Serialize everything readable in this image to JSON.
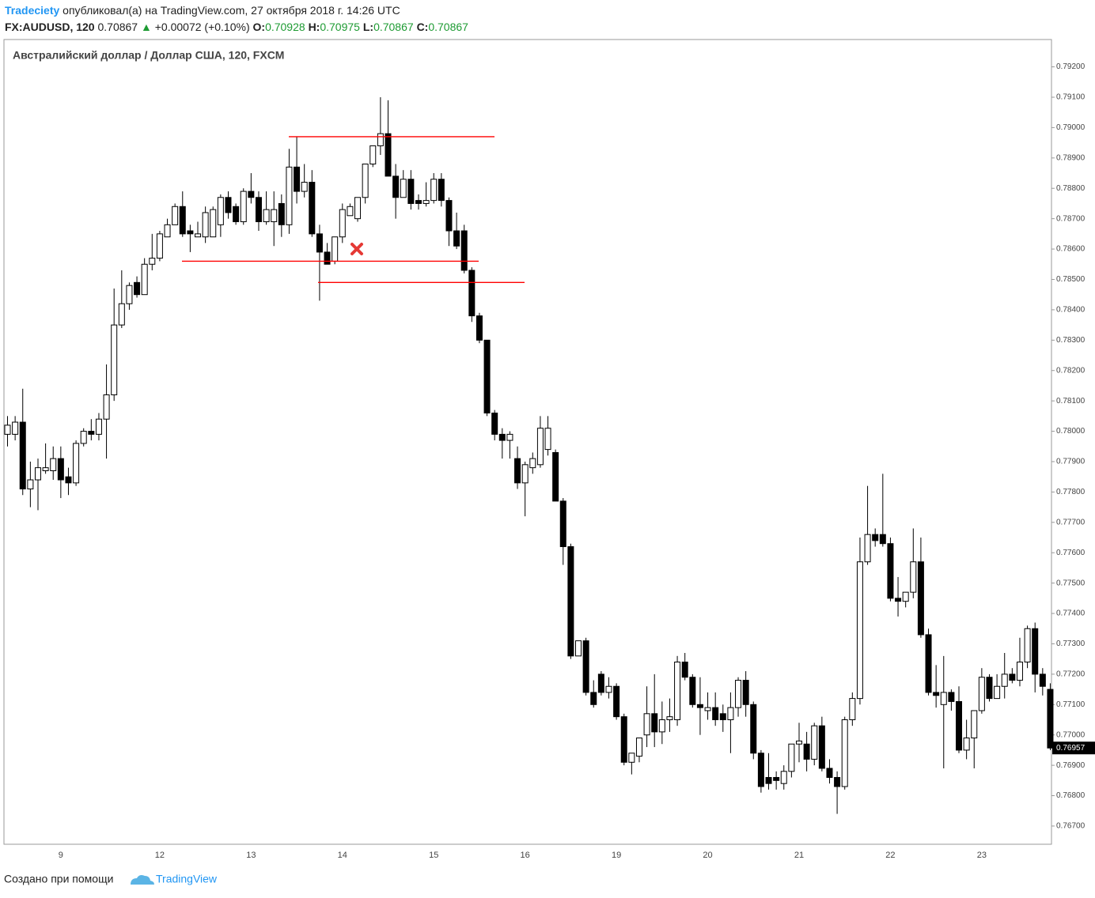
{
  "header": {
    "author": "Tradeciety",
    "published": "опубликовал(а) на TradingView.com, 27 октября 2018 г. 14:26 UTC",
    "symbol": "FX:AUDUSD, 120",
    "price": "0.70867",
    "arrow": "▲",
    "change": "+0.00072 (+0.10%)",
    "o_label": "O:",
    "o_value": "0.70928",
    "h_label": "H:",
    "h_value": "0.70975",
    "l_label": "L:",
    "l_value": "0.70867",
    "c_label": "C:",
    "c_value": "0.70867"
  },
  "footer": {
    "text": "Создано при помощи",
    "brand": "TradingView"
  },
  "chart_data": {
    "type": "candlestick",
    "title": "Австралийский доллар / Доллар США, 120, FXCM",
    "up_color": "#ffffff",
    "down_color": "#000000",
    "level_color": "#ff0000",
    "categories": [
      null,
      null,
      null,
      null,
      null,
      null,
      null,
      "9",
      null,
      null,
      null,
      null,
      null,
      null,
      null,
      null,
      null,
      null,
      null,
      null,
      "12",
      null,
      null,
      null,
      null,
      null,
      null,
      null,
      null,
      null,
      null,
      null,
      "13",
      null,
      null,
      null,
      null,
      null,
      null,
      null,
      null,
      null,
      null,
      null,
      "14",
      null,
      null,
      null,
      null,
      null,
      null,
      null,
      null,
      null,
      null,
      null,
      "15",
      null,
      null,
      null,
      null,
      null,
      null,
      null,
      null,
      null,
      null,
      null,
      "16",
      null,
      null,
      null,
      null,
      null,
      null,
      null,
      null,
      null,
      null,
      null,
      "19",
      null,
      null,
      null,
      null,
      null,
      null,
      null,
      null,
      null,
      null,
      null,
      "20",
      null,
      null,
      null,
      null,
      null,
      null,
      null,
      null,
      null,
      null,
      null,
      "21",
      null,
      null,
      null,
      null,
      null,
      null,
      null,
      null,
      null,
      null,
      null,
      "22",
      null,
      null,
      null,
      null,
      null,
      null,
      null,
      null,
      null,
      null,
      null,
      "23",
      null,
      null,
      null,
      null,
      null,
      null,
      null,
      null,
      null
    ],
    "open": [
      0.7799,
      0.7799,
      0.7803,
      0.7781,
      0.7784,
      0.7787,
      0.7787,
      0.7791,
      0.7785,
      0.7783,
      0.7796,
      0.78,
      0.7799,
      0.7804,
      0.7812,
      0.7835,
      0.7842,
      0.7849,
      0.7845,
      0.7855,
      0.7857,
      0.7864,
      0.7868,
      0.7874,
      0.7866,
      0.7864,
      0.7864,
      0.7864,
      0.7868,
      0.7877,
      0.7874,
      0.7869,
      0.7879,
      0.7877,
      0.7869,
      0.7869,
      0.7875,
      0.7868,
      0.7887,
      0.7879,
      0.7882,
      0.7865,
      0.7859,
      0.7856,
      0.7864,
      0.7871,
      0.787,
      0.7877,
      0.7888,
      0.7894,
      0.7898,
      0.7884,
      0.7877,
      0.7883,
      0.7876,
      0.7875,
      0.7876,
      0.7883,
      0.7876,
      0.7866,
      0.7866,
      0.7853,
      0.7838,
      0.783,
      0.7806,
      0.7799,
      0.7797,
      0.7791,
      0.7783,
      0.7788,
      0.7789,
      0.7794,
      0.7793,
      0.7777,
      0.7762,
      0.7726,
      0.7731,
      0.7714,
      0.772,
      0.7714,
      0.7716,
      0.7706,
      0.7691,
      0.7693,
      0.77,
      0.7707,
      0.7701,
      0.7705,
      0.7705,
      0.7724,
      0.7719,
      0.771,
      0.7708,
      0.7709,
      0.7707,
      0.7705,
      0.7709,
      0.7718,
      0.771,
      0.7694,
      0.7686,
      0.7686,
      0.7684,
      0.7688,
      0.7697,
      0.7697,
      0.7692,
      0.7703,
      0.7689,
      0.7686,
      0.7683,
      0.7705,
      0.7712,
      0.7757,
      0.7766,
      0.7766,
      0.7763,
      0.7745,
      0.7744,
      0.7747,
      0.7757,
      0.7733,
      0.7714,
      0.771,
      0.7714,
      0.7711,
      0.7695,
      0.7699,
      0.7708,
      0.7719,
      0.7712,
      0.7716,
      0.772,
      0.7718,
      0.7724,
      0.7735,
      0.772,
      0.7715
    ],
    "high": [
      0.7805,
      0.7805,
      0.7814,
      0.779,
      0.7791,
      0.7796,
      0.7795,
      0.7795,
      0.7788,
      0.7797,
      0.7801,
      0.7804,
      0.7806,
      0.7822,
      0.7847,
      0.7853,
      0.7849,
      0.7851,
      0.7857,
      0.7865,
      0.7866,
      0.787,
      0.7875,
      0.7879,
      0.7868,
      0.7869,
      0.7874,
      0.7874,
      0.7878,
      0.7879,
      0.7875,
      0.788,
      0.7885,
      0.7879,
      0.7879,
      0.7879,
      0.7878,
      0.7893,
      0.7897,
      0.7888,
      0.7886,
      0.7868,
      0.7862,
      0.7864,
      0.7875,
      0.7875,
      0.7877,
      0.7888,
      0.7894,
      0.791,
      0.7909,
      0.7888,
      0.7886,
      0.7886,
      0.7878,
      0.7882,
      0.7885,
      0.7885,
      0.7877,
      0.7872,
      0.7868,
      0.7854,
      0.7839,
      0.783,
      0.7807,
      0.7801,
      0.78,
      0.7795,
      0.779,
      0.7793,
      0.7805,
      0.7805,
      0.7794,
      0.7778,
      0.7763,
      0.7731,
      0.7732,
      0.7718,
      0.7721,
      0.7719,
      0.7717,
      0.7707,
      0.7694,
      0.7699,
      0.7716,
      0.772,
      0.7711,
      0.7712,
      0.7726,
      0.7727,
      0.772,
      0.7719,
      0.7714,
      0.7714,
      0.771,
      0.7714,
      0.7719,
      0.7721,
      0.7711,
      0.7695,
      0.7694,
      0.7688,
      0.769,
      0.7697,
      0.7704,
      0.7701,
      0.7704,
      0.7706,
      0.7692,
      0.7688,
      0.7706,
      0.7714,
      0.7765,
      0.7782,
      0.7768,
      0.7786,
      0.7765,
      0.7752,
      0.7747,
      0.7768,
      0.7765,
      0.7735,
      0.7723,
      0.7726,
      0.7715,
      0.7716,
      0.7705,
      0.7708,
      0.7722,
      0.772,
      0.772,
      0.7727,
      0.7722,
      0.7732,
      0.7736,
      0.7737,
      0.7722,
      0.7717
    ],
    "low": [
      0.7795,
      0.7797,
      0.7779,
      0.7775,
      0.7774,
      0.7786,
      0.7784,
      0.7778,
      0.7779,
      0.7782,
      0.7795,
      0.7797,
      0.7797,
      0.7791,
      0.781,
      0.7834,
      0.784,
      0.7844,
      0.7845,
      0.7853,
      0.7856,
      0.7864,
      0.7868,
      0.7864,
      0.7859,
      0.7864,
      0.7862,
      0.7864,
      0.7864,
      0.787,
      0.7868,
      0.7868,
      0.7875,
      0.7866,
      0.7868,
      0.7861,
      0.7864,
      0.7865,
      0.7875,
      0.7877,
      0.7864,
      0.7843,
      0.7855,
      0.7855,
      0.7862,
      0.7871,
      0.7869,
      0.7875,
      0.7887,
      0.7891,
      0.7884,
      0.787,
      0.7877,
      0.7873,
      0.7873,
      0.7874,
      0.7875,
      0.7874,
      0.7861,
      0.786,
      0.7852,
      0.7836,
      0.7829,
      0.7805,
      0.7797,
      0.7791,
      0.7791,
      0.7781,
      0.7772,
      0.7786,
      0.7788,
      0.7792,
      0.7777,
      0.7756,
      0.7725,
      0.7726,
      0.7713,
      0.7709,
      0.7713,
      0.7712,
      0.7705,
      0.769,
      0.7687,
      0.7691,
      0.7696,
      0.7696,
      0.7697,
      0.7701,
      0.7703,
      0.7718,
      0.7709,
      0.77,
      0.7705,
      0.7703,
      0.7701,
      0.7694,
      0.7706,
      0.7706,
      0.7692,
      0.7681,
      0.7682,
      0.7682,
      0.7682,
      0.7686,
      0.7691,
      0.7688,
      0.769,
      0.7688,
      0.7684,
      0.7674,
      0.7682,
      0.7703,
      0.771,
      0.7756,
      0.7762,
      0.7762,
      0.7744,
      0.7739,
      0.7742,
      0.7745,
      0.7732,
      0.7713,
      0.7709,
      0.7689,
      0.7708,
      0.7694,
      0.7692,
      0.7689,
      0.7707,
      0.7711,
      0.7712,
      0.7712,
      0.7717,
      0.7716,
      0.7722,
      0.7714,
      0.7713,
      0.7695
    ],
    "close": [
      0.7802,
      0.7803,
      0.7781,
      0.7784,
      0.7788,
      0.7788,
      0.7791,
      0.7784,
      0.7783,
      0.7796,
      0.78,
      0.7799,
      0.7804,
      0.7812,
      0.7835,
      0.7842,
      0.7848,
      0.7845,
      0.7855,
      0.7857,
      0.7865,
      0.7868,
      0.7874,
      0.7865,
      0.7865,
      0.7865,
      0.7872,
      0.7873,
      0.7877,
      0.7872,
      0.7869,
      0.7879,
      0.7877,
      0.7869,
      0.7873,
      0.7873,
      0.7868,
      0.7887,
      0.7879,
      0.7882,
      0.7865,
      0.7859,
      0.7855,
      0.7864,
      0.7873,
      0.7874,
      0.7877,
      0.7888,
      0.7894,
      0.7898,
      0.7884,
      0.7877,
      0.7883,
      0.7875,
      0.7875,
      0.7876,
      0.7883,
      0.7876,
      0.7866,
      0.7861,
      0.7853,
      0.7838,
      0.783,
      0.7806,
      0.7799,
      0.7797,
      0.7799,
      0.7783,
      0.7789,
      0.7791,
      0.7801,
      0.7801,
      0.7777,
      0.7762,
      0.7726,
      0.7731,
      0.7714,
      0.771,
      0.7714,
      0.7716,
      0.7706,
      0.7691,
      0.7694,
      0.7699,
      0.7707,
      0.7701,
      0.7705,
      0.7706,
      0.7724,
      0.7719,
      0.771,
      0.7709,
      0.7709,
      0.7705,
      0.7705,
      0.7709,
      0.7718,
      0.771,
      0.7694,
      0.7683,
      0.7684,
      0.7685,
      0.7688,
      0.7697,
      0.7698,
      0.7692,
      0.7703,
      0.7689,
      0.7686,
      0.7683,
      0.7705,
      0.7712,
      0.7757,
      0.7766,
      0.7764,
      0.7763,
      0.7745,
      0.7744,
      0.7747,
      0.7757,
      0.7733,
      0.7714,
      0.7713,
      0.7714,
      0.7711,
      0.7695,
      0.7699,
      0.7708,
      0.7719,
      0.7712,
      0.7716,
      0.772,
      0.7718,
      0.7724,
      0.7735,
      0.772,
      0.7716,
      0.76957
    ],
    "levels": [
      0.7897,
      0.7856,
      0.7849
    ],
    "ylim": [
      0.7664,
      0.7929
    ],
    "yticks": [
      {
        "value": 0.767,
        "label": "0.76700"
      },
      {
        "value": 0.768,
        "label": "0.76800"
      },
      {
        "value": 0.769,
        "label": "0.76900"
      },
      {
        "value": 0.77,
        "label": "0.77000"
      },
      {
        "value": 0.771,
        "label": "0.77100"
      },
      {
        "value": 0.772,
        "label": "0.77200"
      },
      {
        "value": 0.773,
        "label": "0.77300"
      },
      {
        "value": 0.774,
        "label": "0.77400"
      },
      {
        "value": 0.775,
        "label": "0.77500"
      },
      {
        "value": 0.776,
        "label": "0.77600"
      },
      {
        "value": 0.777,
        "label": "0.77700"
      },
      {
        "value": 0.778,
        "label": "0.77800"
      },
      {
        "value": 0.779,
        "label": "0.77900"
      },
      {
        "value": 0.78,
        "label": "0.78000"
      },
      {
        "value": 0.781,
        "label": "0.78100"
      },
      {
        "value": 0.782,
        "label": "0.78200"
      },
      {
        "value": 0.783,
        "label": "0.78300"
      },
      {
        "value": 0.784,
        "label": "0.78400"
      },
      {
        "value": 0.785,
        "label": "0.78500"
      },
      {
        "value": 0.786,
        "label": "0.78600"
      },
      {
        "value": 0.787,
        "label": "0.78700"
      },
      {
        "value": 0.788,
        "label": "0.78800"
      },
      {
        "value": 0.789,
        "label": "0.78900"
      },
      {
        "value": 0.79,
        "label": "0.79000"
      },
      {
        "value": 0.791,
        "label": "0.79100"
      },
      {
        "value": 0.792,
        "label": "0.79200"
      }
    ]
  }
}
